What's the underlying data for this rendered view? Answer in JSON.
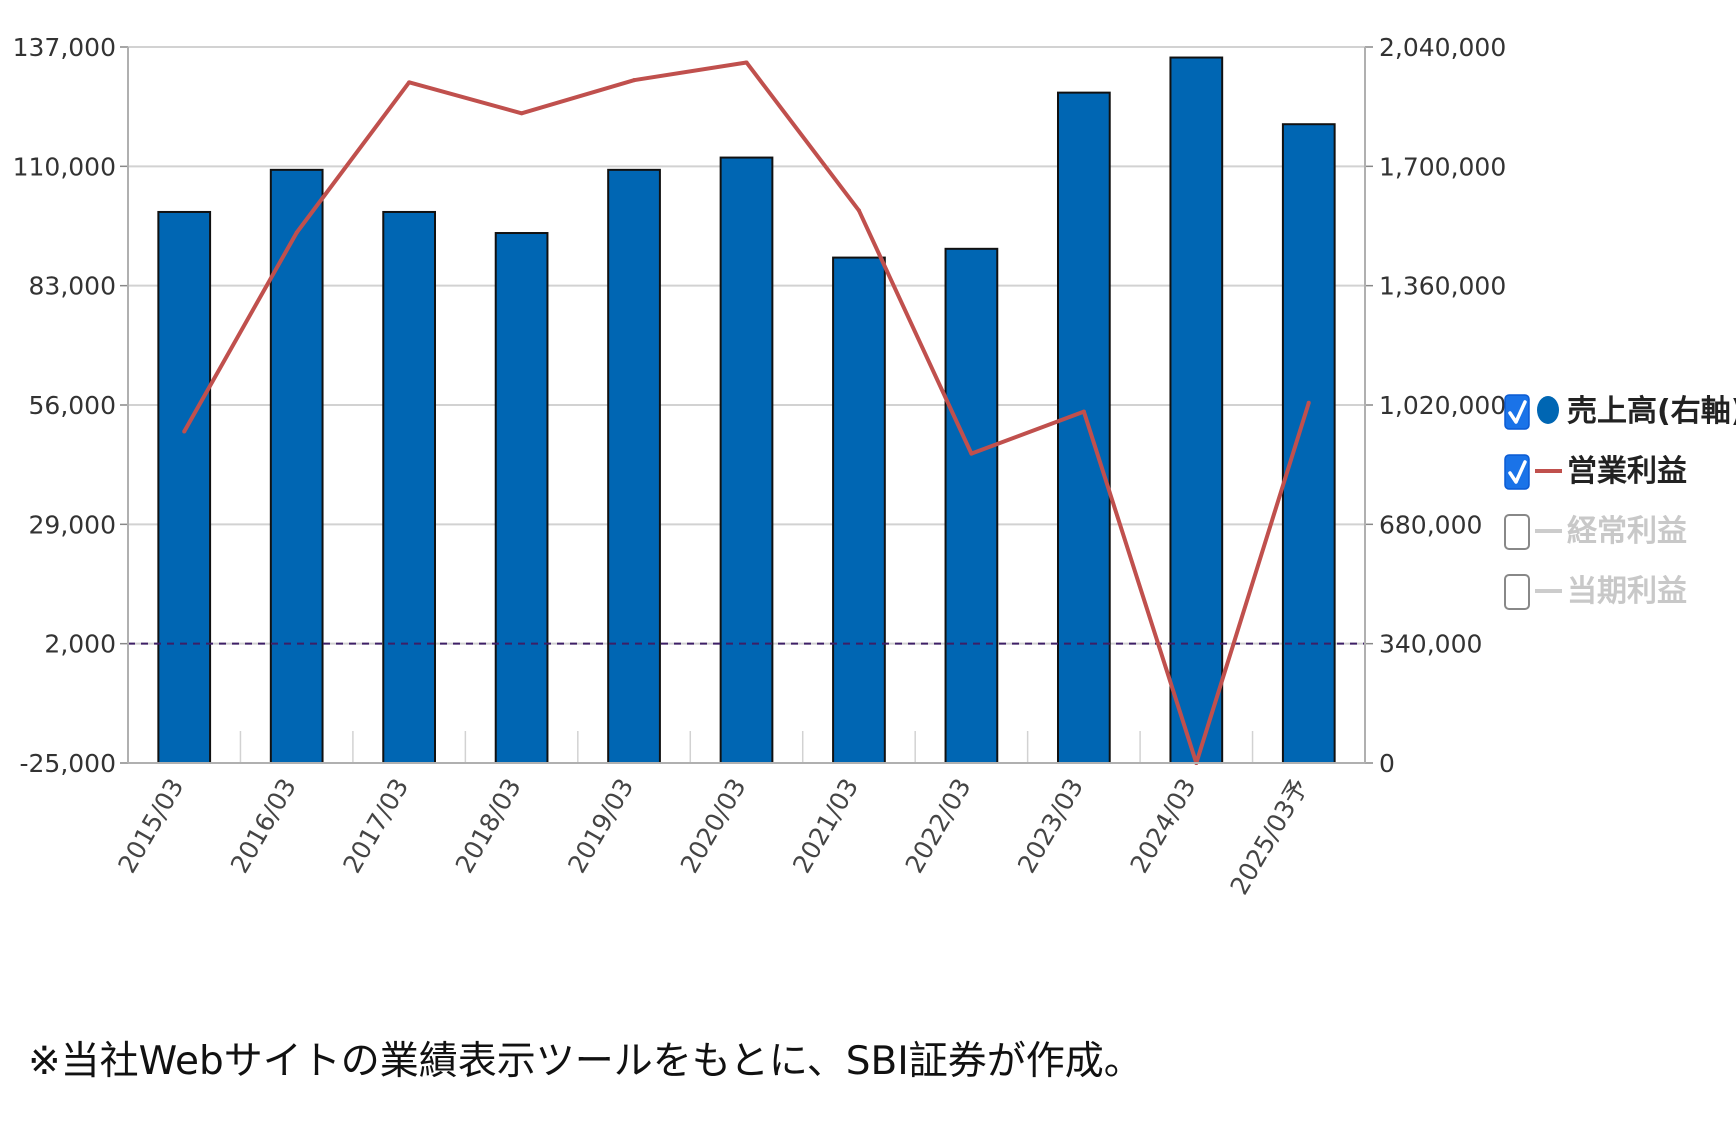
{
  "chart_data": {
    "type": "bar",
    "categories": [
      "2015/03",
      "2016/03",
      "2017/03",
      "2018/03",
      "2019/03",
      "2020/03",
      "2021/03",
      "2022/03",
      "2023/03",
      "2024/03",
      "2025/03予"
    ],
    "series": [
      {
        "name": "売上高(右軸)",
        "type": "bar",
        "axis": "right",
        "color": "#0066b3",
        "values": [
          1570000,
          1690000,
          1570000,
          1510000,
          1690000,
          1725000,
          1440000,
          1465000,
          1910000,
          2010000,
          1820000
        ]
      },
      {
        "name": "営業利益",
        "type": "line",
        "axis": "left",
        "color": "#c0504d",
        "values": [
          50000,
          95000,
          129000,
          122000,
          129500,
          133500,
          100000,
          45000,
          54500,
          -25000,
          56500
        ]
      }
    ],
    "left_axis": {
      "ticks": [
        "137,000",
        "110,000",
        "83,000",
        "56,000",
        "29,000",
        "2,000",
        "-25,000"
      ],
      "range": [
        -25000,
        137000
      ]
    },
    "right_axis": {
      "ticks": [
        "2,040,000",
        "1,700,000",
        "1,360,000",
        "1,020,000",
        "680,000",
        "340,000",
        "0"
      ],
      "range": [
        0,
        2040000
      ]
    },
    "reference_line": {
      "axis": "left",
      "value": 2000,
      "style": "dashed",
      "color": "#3d1f66"
    },
    "grid": true,
    "legend_position": "right",
    "legend": [
      {
        "label": "売上高(右軸)",
        "checked": true,
        "marker": "circle",
        "color": "#0066b3",
        "active": true
      },
      {
        "label": "営業利益",
        "checked": true,
        "marker": "line",
        "color": "#c0504d",
        "active": true
      },
      {
        "label": "経常利益",
        "checked": false,
        "marker": "line",
        "color": "#cccccc",
        "active": false
      },
      {
        "label": "当期利益",
        "checked": false,
        "marker": "line",
        "color": "#cccccc",
        "active": false
      }
    ]
  },
  "footnote": "※当社Webサイトの業績表示ツールをもとに、SBI証券が作成。"
}
